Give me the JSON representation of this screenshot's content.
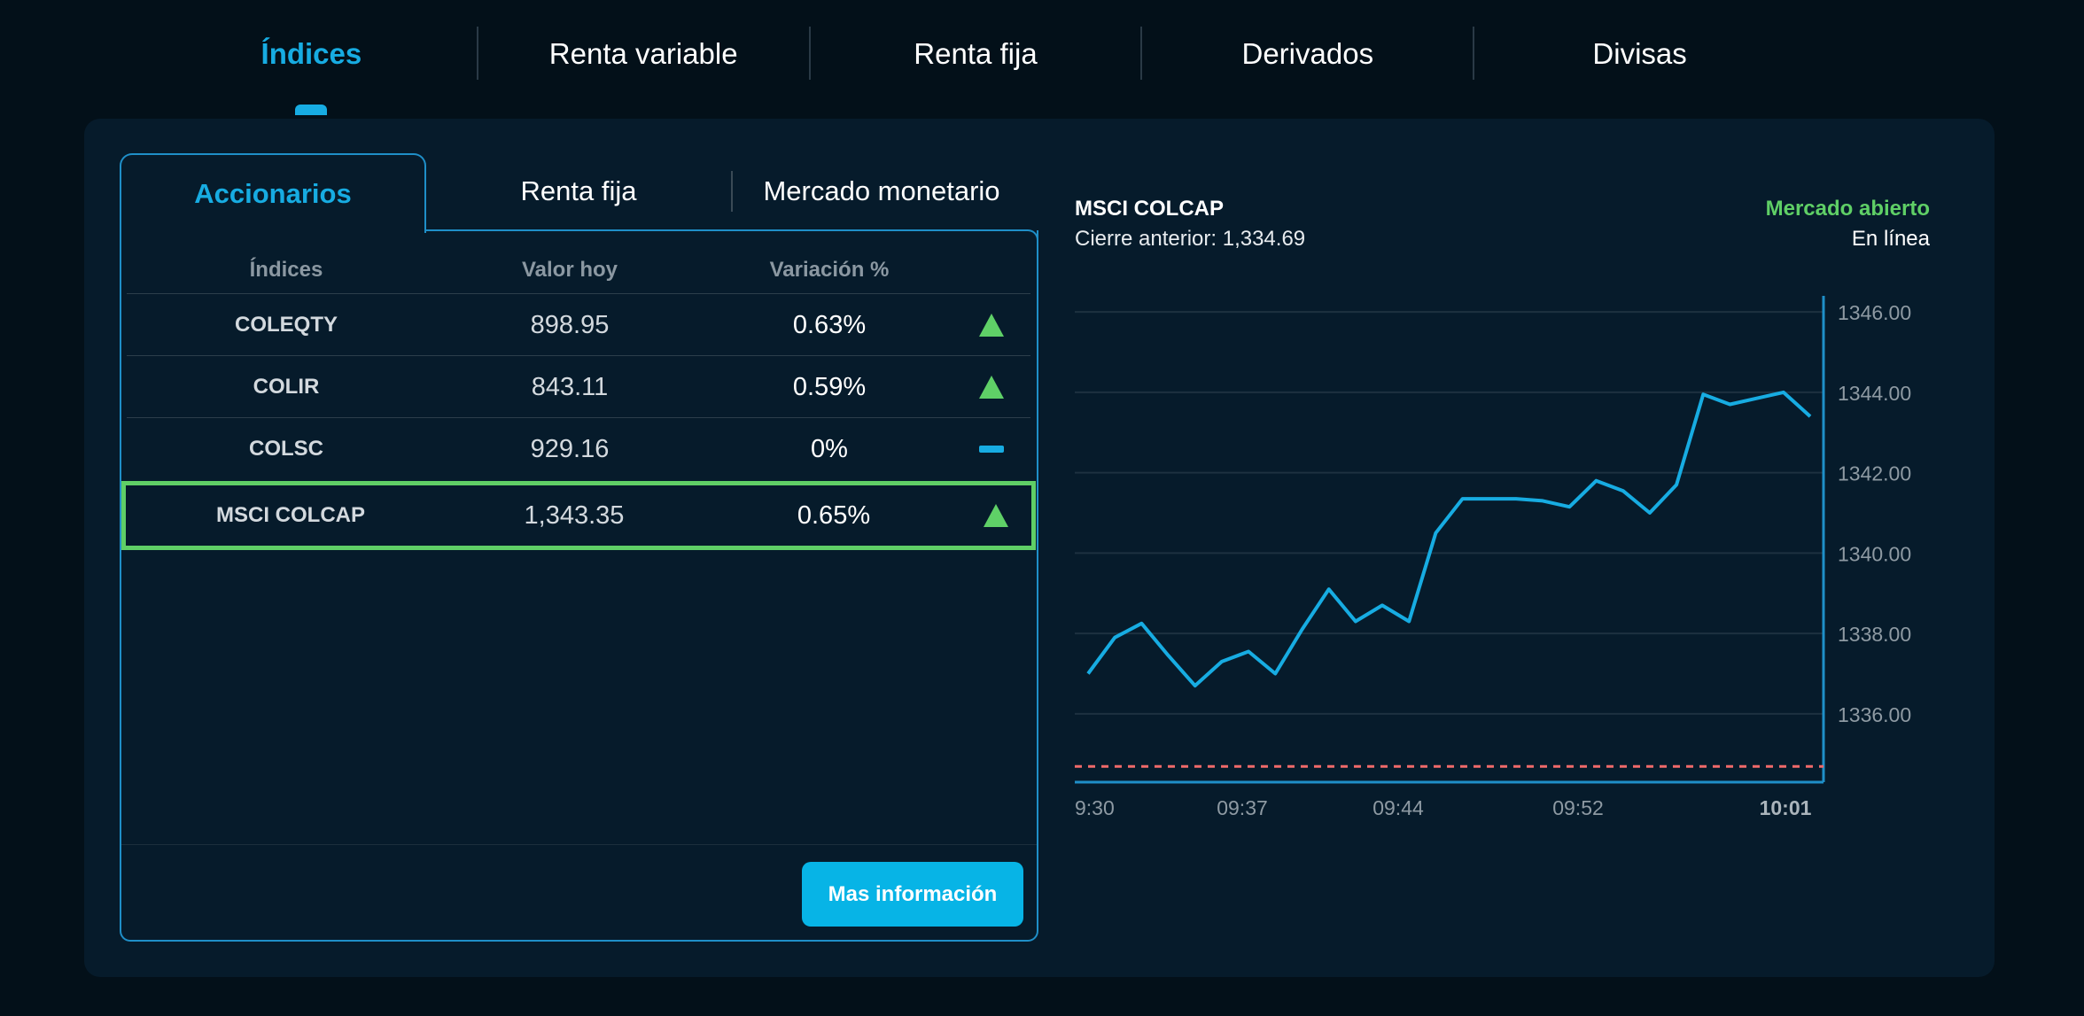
{
  "nav": {
    "tabs": [
      "Índices",
      "Renta variable",
      "Renta fija",
      "Derivados",
      "Divisas"
    ],
    "active_index": 0
  },
  "subtabs": {
    "active": "Accionarios",
    "renta_fija": "Renta fija",
    "mercado_monetario": "Mercado monetario"
  },
  "table": {
    "headers": [
      "Índices",
      "Valor hoy",
      "Variación %"
    ],
    "rows": [
      {
        "name": "COLEQTY",
        "value": "898.95",
        "variation": "0.63%",
        "trend": "up"
      },
      {
        "name": "COLIR",
        "value": "843.11",
        "variation": "0.59%",
        "trend": "up"
      },
      {
        "name": "COLSC",
        "value": "929.16",
        "variation": "0%",
        "trend": "flat"
      },
      {
        "name": "MSCI COLCAP",
        "value": "1,343.35",
        "variation": "0.65%",
        "trend": "up",
        "selected": true
      }
    ]
  },
  "button_more": "Mas información",
  "chart_header": {
    "title": "MSCI COLCAP",
    "previous_close": "Cierre anterior: 1,334.69",
    "status": "Mercado abierto",
    "live": "En línea"
  },
  "colors": {
    "accent": "#17ace2",
    "positive": "#5fcf66",
    "reference_line": "#f06a6a",
    "background": "#031019",
    "panel": "#061b2b"
  },
  "chart_data": {
    "type": "line",
    "title": "MSCI COLCAP",
    "x_tick_labels": [
      "9:30",
      "09:37",
      "09:44",
      "09:52",
      "10:01"
    ],
    "y_tick_labels": [
      "1346.00",
      "1344.00",
      "1342.00",
      "1340.00",
      "1338.00",
      "1336.00"
    ],
    "ylim": [
      1334.3,
      1346.4
    ],
    "reference_value": 1334.69,
    "grid": true,
    "series": [
      {
        "values": [
          1337.0,
          1337.9,
          1338.25,
          1337.45,
          1336.7,
          1337.3,
          1337.55,
          1337.0,
          1338.1,
          1339.1,
          1338.3,
          1338.7,
          1338.3,
          1340.5,
          1341.35,
          1341.35,
          1341.35,
          1341.3,
          1341.15,
          1341.8,
          1341.55,
          1341.0,
          1341.7,
          1343.95,
          1343.7,
          1343.85,
          1344.0,
          1343.4
        ]
      }
    ]
  }
}
